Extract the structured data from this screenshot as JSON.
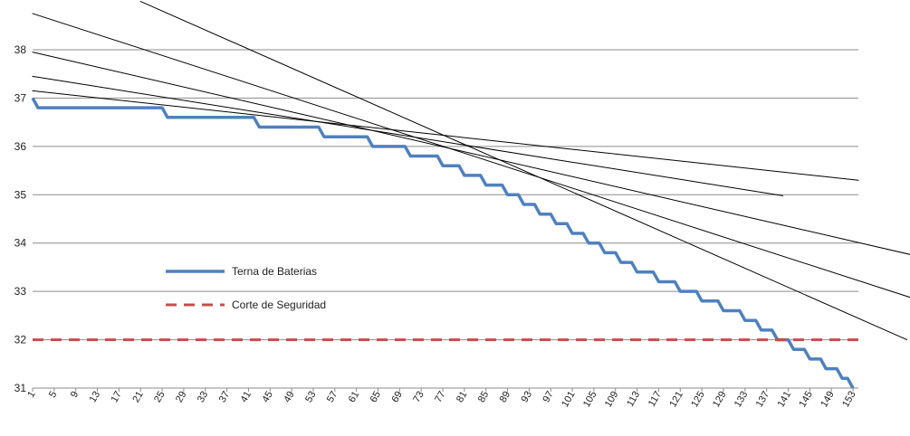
{
  "chart_data": {
    "type": "line",
    "title": "",
    "xlabel": "",
    "ylabel": "",
    "xlim": [
      1,
      154
    ],
    "ylim": [
      31,
      38
    ],
    "yticks": [
      31,
      32,
      33,
      34,
      35,
      36,
      37,
      38
    ],
    "xticks": [
      1,
      5,
      9,
      13,
      17,
      21,
      25,
      29,
      33,
      37,
      41,
      45,
      49,
      53,
      57,
      61,
      65,
      69,
      73,
      77,
      81,
      85,
      89,
      93,
      97,
      101,
      105,
      109,
      113,
      117,
      121,
      125,
      129,
      133,
      137,
      141,
      145,
      149,
      153
    ],
    "grid": true,
    "legend": {
      "placement": "center-left"
    },
    "series": [
      {
        "name": "Terna de Baterias",
        "color": "#4F81BD",
        "style": "solid",
        "x": [
          1,
          2,
          25,
          26,
          42,
          43,
          54,
          55,
          63,
          64,
          70,
          71,
          76,
          77,
          80,
          81,
          84,
          85,
          88,
          89,
          91,
          92,
          94,
          95,
          97,
          98,
          100,
          101,
          103,
          104,
          106,
          107,
          109,
          110,
          112,
          113,
          116,
          117,
          120,
          121,
          124,
          125,
          128,
          129,
          132,
          133,
          135,
          136,
          138,
          139,
          141,
          142,
          144,
          145,
          147,
          148,
          150,
          151,
          152,
          153
        ],
        "y": [
          37.0,
          36.8,
          36.8,
          36.6,
          36.6,
          36.4,
          36.4,
          36.2,
          36.2,
          36.0,
          36.0,
          35.8,
          35.8,
          35.6,
          35.6,
          35.4,
          35.4,
          35.2,
          35.2,
          35.0,
          35.0,
          34.8,
          34.8,
          34.6,
          34.6,
          34.4,
          34.4,
          34.2,
          34.2,
          34.0,
          34.0,
          33.8,
          33.8,
          33.6,
          33.6,
          33.4,
          33.4,
          33.2,
          33.2,
          33.0,
          33.0,
          32.8,
          32.8,
          32.6,
          32.6,
          32.4,
          32.4,
          32.2,
          32.2,
          32.0,
          32.0,
          31.8,
          31.8,
          31.6,
          31.6,
          31.4,
          31.4,
          31.2,
          31.2,
          31.0
        ]
      },
      {
        "name": "Corte de Seguridad",
        "color": "#C0504D",
        "style": "dashed",
        "x": [
          1,
          154
        ],
        "y": [
          32,
          32
        ]
      }
    ],
    "trend_lines": [
      {
        "color": "#000000",
        "x": [
          1,
          154
        ],
        "y": [
          37.15,
          35.3
        ]
      },
      {
        "color": "#000000",
        "x": [
          1,
          140
        ],
        "y": [
          37.45,
          34.98
        ]
      },
      {
        "color": "#000000",
        "x": [
          1,
          168
        ],
        "y": [
          37.95,
          33.65
        ]
      },
      {
        "color": "#000000",
        "x": [
          1,
          174
        ],
        "y": [
          38.75,
          32.5
        ]
      },
      {
        "color": "#000000",
        "x": [
          21,
          163
        ],
        "y": [
          39.0,
          32.0
        ]
      }
    ]
  }
}
